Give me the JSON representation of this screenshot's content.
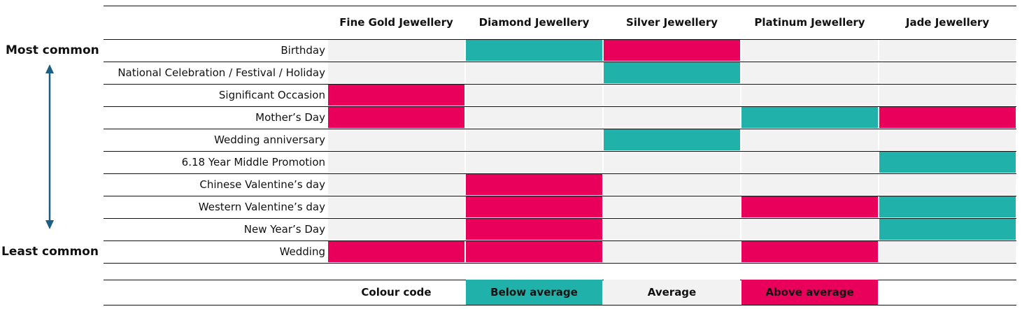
{
  "chart_data": {
    "type": "heatmap",
    "columns": [
      "Fine Gold Jewellery",
      "Diamond Jewellery",
      "Silver Jewellery",
      "Platinum Jewellery",
      "Jade Jewellery"
    ],
    "rows": [
      {
        "label": "Birthday",
        "values": [
          "average",
          "below",
          "above",
          "average",
          "average"
        ]
      },
      {
        "label": "National Celebration / Festival / Holiday",
        "values": [
          "average",
          "average",
          "below",
          "average",
          "average"
        ]
      },
      {
        "label": "Significant Occasion",
        "values": [
          "above",
          "average",
          "average",
          "average",
          "average"
        ]
      },
      {
        "label": "Mother’s Day",
        "values": [
          "above",
          "average",
          "average",
          "below",
          "above"
        ]
      },
      {
        "label": "Wedding anniversary",
        "values": [
          "average",
          "average",
          "below",
          "average",
          "average"
        ]
      },
      {
        "label": "6.18 Year Middle Promotion",
        "values": [
          "average",
          "average",
          "average",
          "average",
          "below"
        ]
      },
      {
        "label": "Chinese Valentine’s day",
        "values": [
          "average",
          "above",
          "average",
          "average",
          "average"
        ]
      },
      {
        "label": "Western Valentine’s day",
        "values": [
          "average",
          "above",
          "average",
          "above",
          "below"
        ]
      },
      {
        "label": "New Year’s Day",
        "values": [
          "average",
          "above",
          "average",
          "average",
          "below"
        ]
      },
      {
        "label": "Wedding",
        "values": [
          "above",
          "above",
          "average",
          "above",
          "average"
        ]
      }
    ],
    "axis_top_label": "Most common",
    "axis_bottom_label": "Least common",
    "legend": {
      "title": "Colour code",
      "items": [
        {
          "key": "below",
          "label": "Below average"
        },
        {
          "key": "average",
          "label": "Average"
        },
        {
          "key": "above",
          "label": "Above average"
        }
      ]
    },
    "colors": {
      "below": "#20b2aa",
      "average": "#f2f2f2",
      "above": "#e8005a",
      "arrow": "#1d5f82"
    }
  }
}
